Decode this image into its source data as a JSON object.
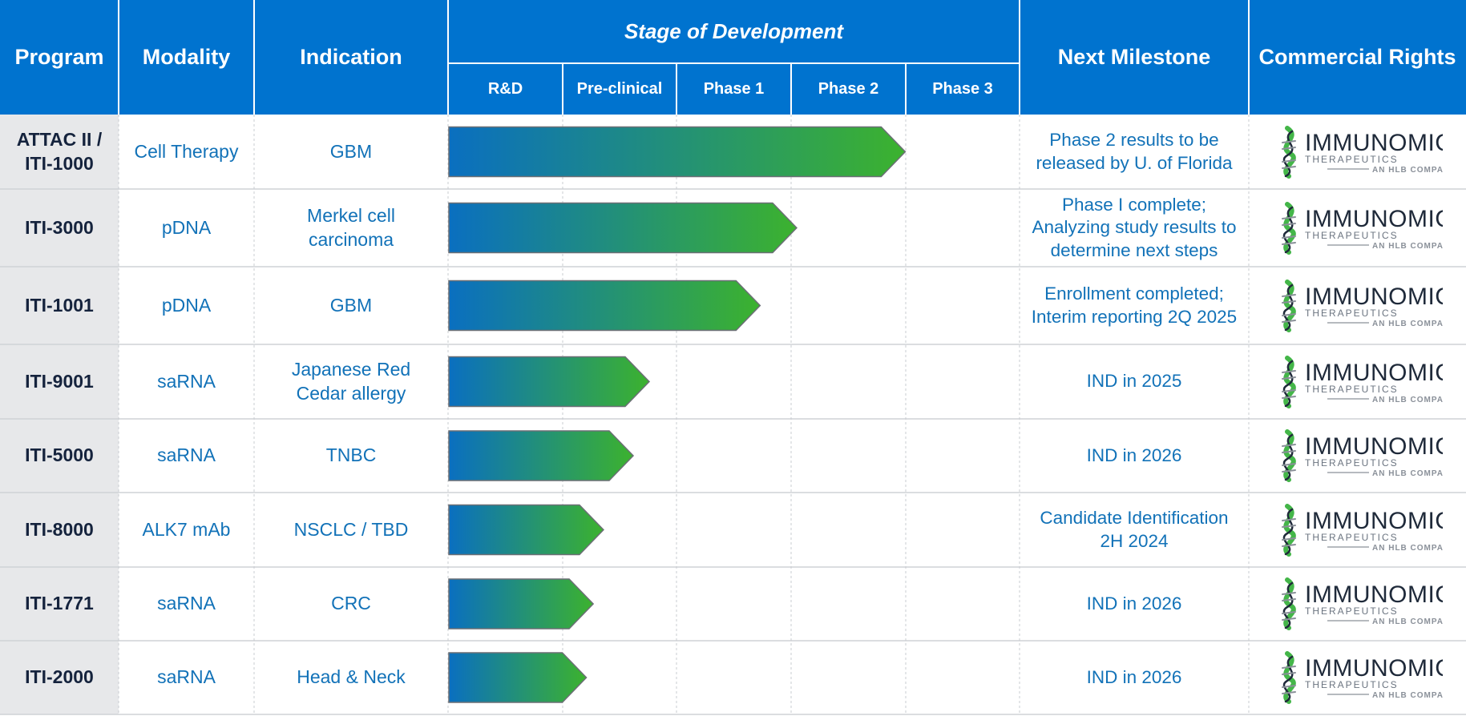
{
  "headers": {
    "program": "Program",
    "modality": "Modality",
    "indication": "Indication",
    "stage": "Stage of Development",
    "next_milestone": "Next Milestone",
    "commercial_rights": "Commercial Rights"
  },
  "colors": {
    "header_bg": "#0073cf",
    "text_blue": "#1272b8",
    "program_text": "#15233d",
    "program_col_bg": "#e7e8ea",
    "bar_start": "#0a6fc0",
    "bar_end": "#3cb22e",
    "logo_dark": "#1f2a3a",
    "logo_green": "#44b649"
  },
  "logo": {
    "name": "IMMUNOMIC",
    "subtitle": "THERAPEUTICS",
    "tagline": "AN HLB COMPANY"
  },
  "chart_data": {
    "type": "bar",
    "orientation": "horizontal",
    "title": "Stage of Development",
    "stages": [
      "R&D",
      "Pre-clinical",
      "Phase 1",
      "Phase 2",
      "Phase 3"
    ],
    "xlim": [
      0,
      5
    ],
    "rows": [
      {
        "program": "ATTAC II / ITI-1000",
        "modality": "Cell Therapy",
        "indication": "GBM",
        "progress": 4.0,
        "milestone": "Phase 2 results to be released by U. of Florida"
      },
      {
        "program": "ITI-3000",
        "modality": "pDNA",
        "indication": "Merkel cell carcinoma",
        "progress": 3.05,
        "milestone": "Phase I complete; Analyzing study results to determine next steps"
      },
      {
        "program": "ITI-1001",
        "modality": "pDNA",
        "indication": "GBM",
        "progress": 2.73,
        "milestone": "Enrollment completed; Interim reporting 2Q 2025"
      },
      {
        "program": "ITI-9001",
        "modality": "saRNA",
        "indication": "Japanese Red Cedar allergy",
        "progress": 1.76,
        "milestone": "IND in 2025"
      },
      {
        "program": "ITI-5000",
        "modality": "saRNA",
        "indication": "TNBC",
        "progress": 1.62,
        "milestone": "IND in 2026"
      },
      {
        "program": "ITI-8000",
        "modality": "ALK7 mAb",
        "indication": "NSCLC / TBD",
        "progress": 1.36,
        "milestone": "Candidate Identification 2H 2024"
      },
      {
        "program": "ITI-1771",
        "modality": "saRNA",
        "indication": "CRC",
        "progress": 1.27,
        "milestone": "IND in 2026"
      },
      {
        "program": "ITI-2000",
        "modality": "saRNA",
        "indication": "Head & Neck",
        "progress": 1.21,
        "milestone": "IND in 2026"
      }
    ]
  }
}
